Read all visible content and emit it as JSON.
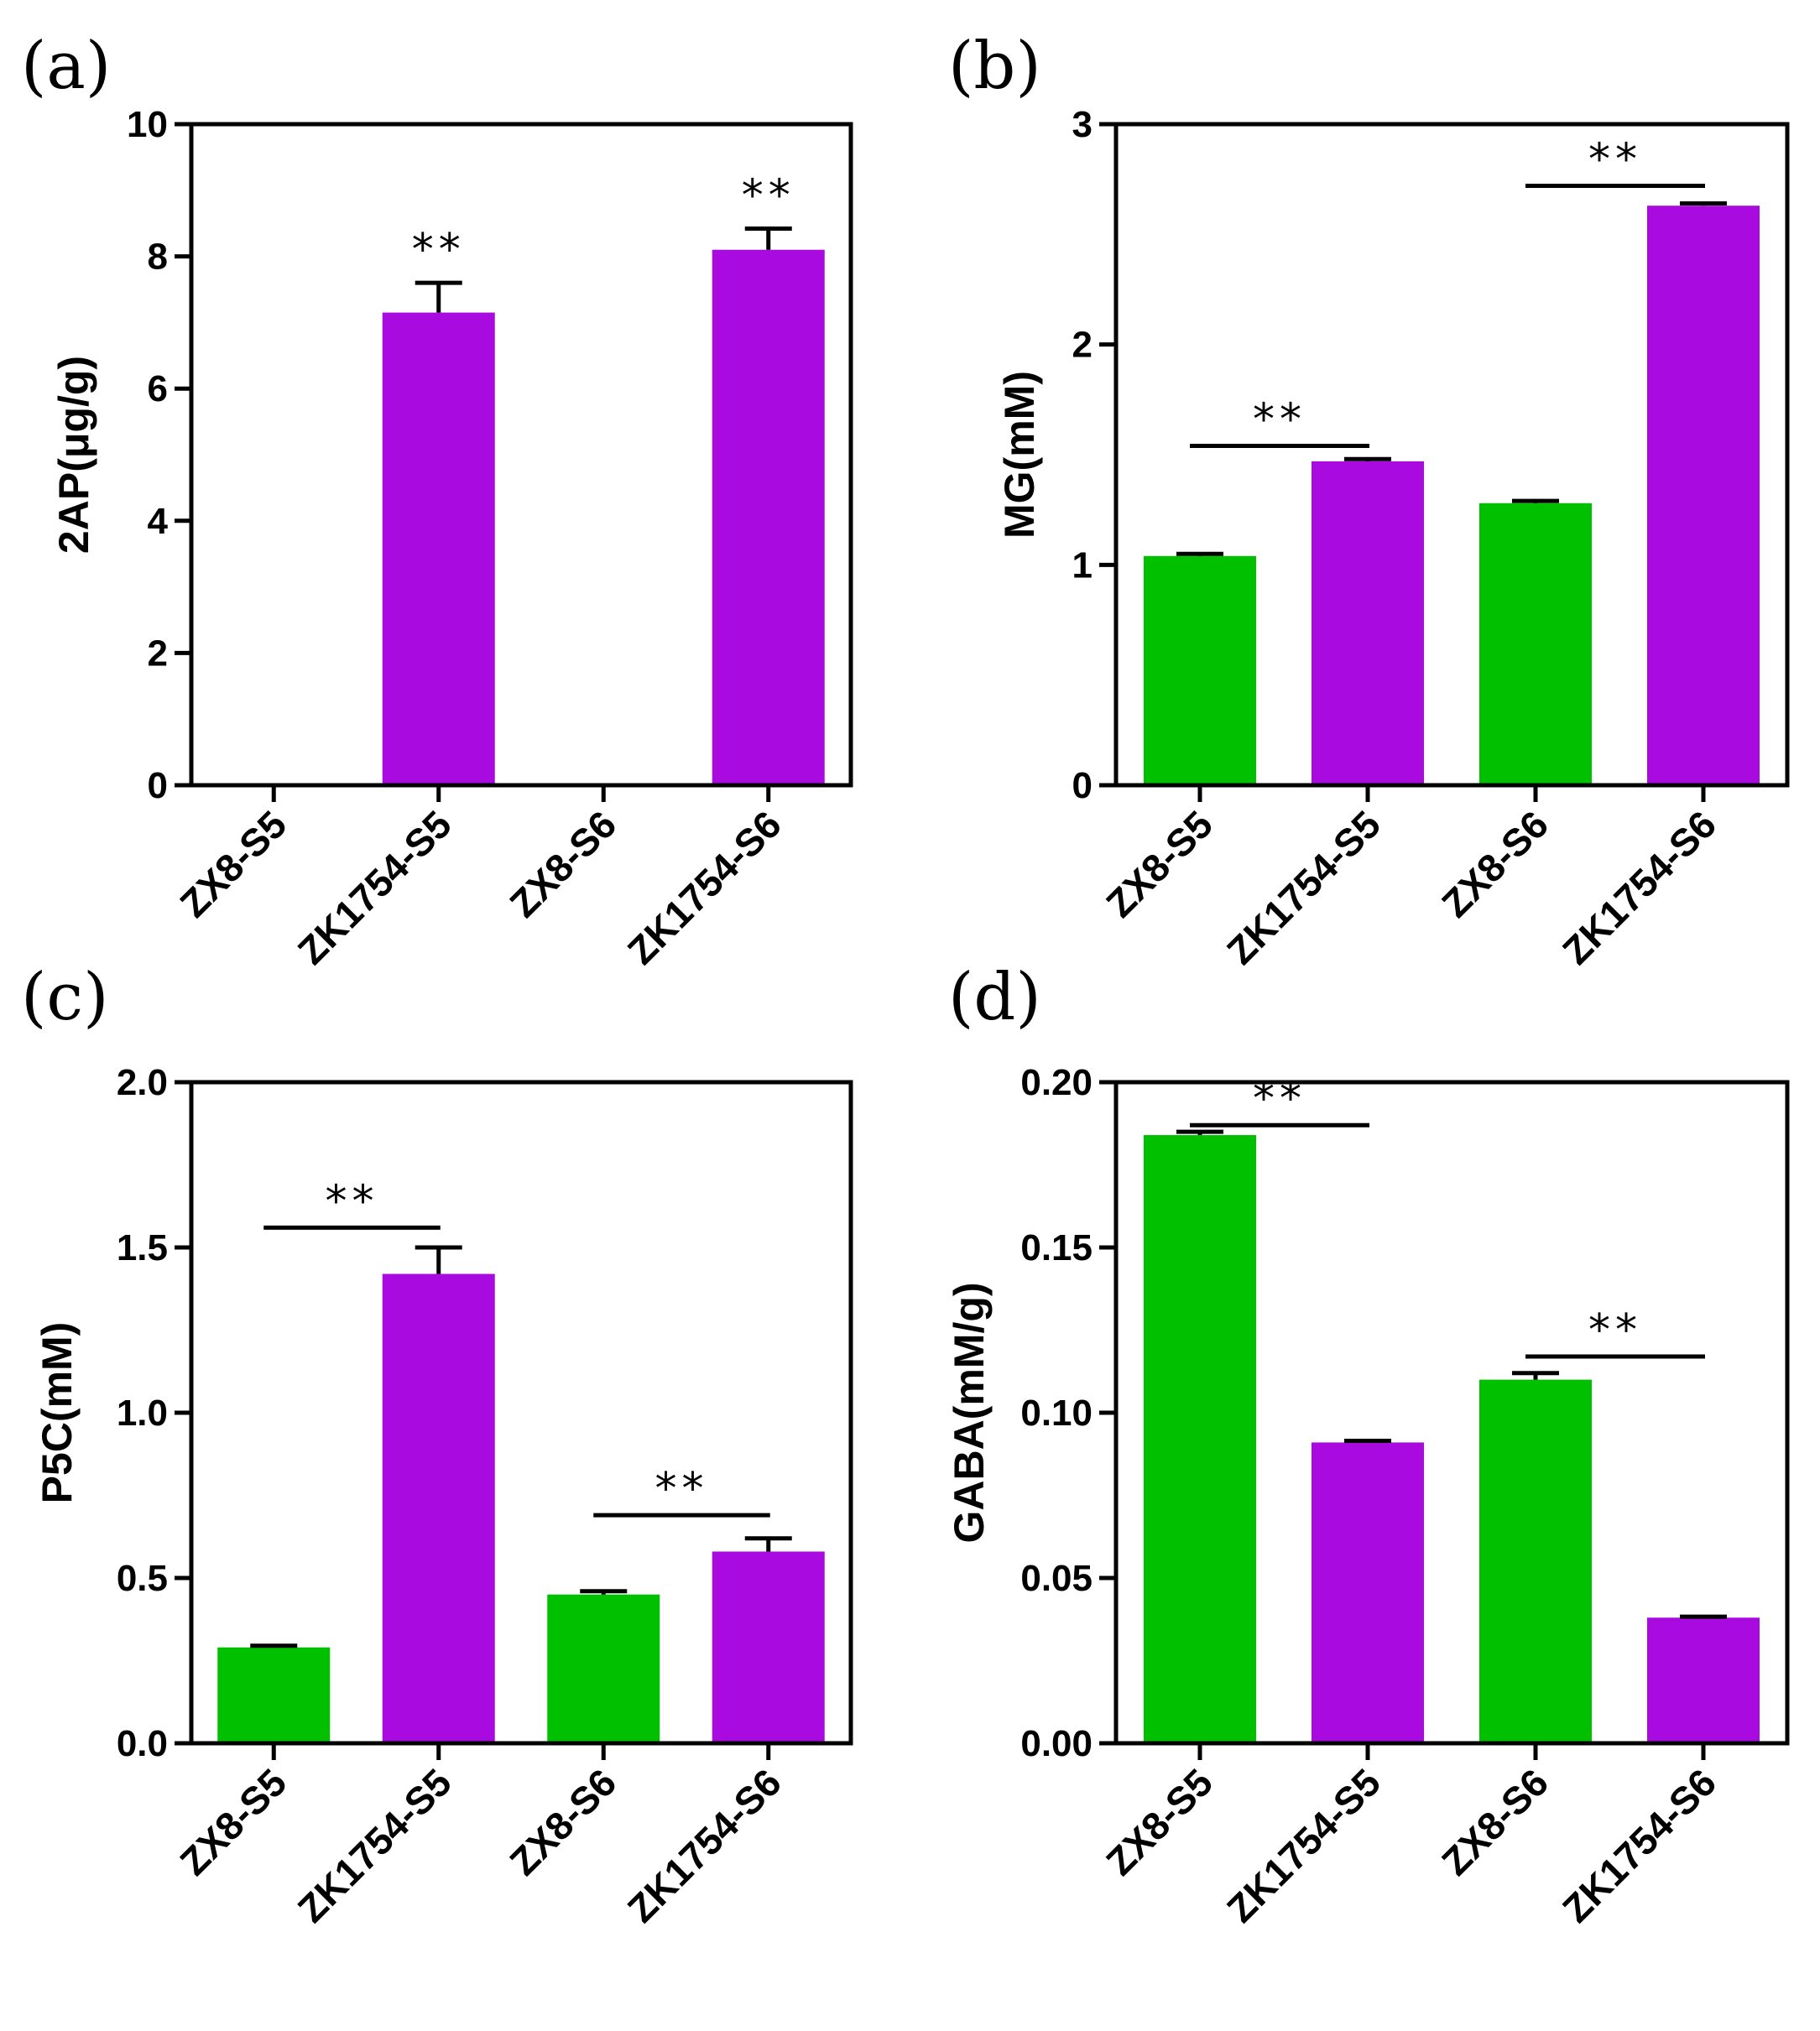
{
  "colors": {
    "green": "#00c000",
    "purple": "#a80ae0",
    "axis": "#000000"
  },
  "chart_data": [
    {
      "type": "bar",
      "panel": "(a)",
      "ylabel": "2AP(μg/g)",
      "ylim": [
        0,
        10
      ],
      "yticks": [
        "0",
        "2",
        "4",
        "6",
        "8",
        "10"
      ],
      "categories": [
        "ZX8-S5",
        "ZK1754-S5",
        "ZX8-S6",
        "ZK1754-S6"
      ],
      "values": [
        0,
        7.15,
        0,
        8.1
      ],
      "errors": [
        0,
        0.45,
        0,
        0.32
      ],
      "bar_colors": [
        "green",
        "purple",
        "green",
        "purple"
      ],
      "significance": [
        {
          "text": "**",
          "bar": 1
        },
        {
          "text": "**",
          "bar": 3
        }
      ]
    },
    {
      "type": "bar",
      "panel": "(b)",
      "ylabel": "MG(mM)",
      "ylim": [
        0,
        3
      ],
      "yticks": [
        "0",
        "1",
        "2",
        "3"
      ],
      "categories": [
        "ZX8-S5",
        "ZK1754-S5",
        "ZX8-S6",
        "ZK1754-S6"
      ],
      "values": [
        1.04,
        1.47,
        1.28,
        2.63
      ],
      "errors": [
        0.01,
        0.01,
        0.01,
        0.01
      ],
      "bar_colors": [
        "green",
        "purple",
        "green",
        "purple"
      ],
      "significance": [
        {
          "text": "**",
          "from": 0,
          "to": 1,
          "y": 1.54
        },
        {
          "text": "**",
          "from": 2,
          "to": 3,
          "y": 2.72
        }
      ]
    },
    {
      "type": "bar",
      "panel": "(c)",
      "ylabel": "P5C(mM)",
      "ylim": [
        0,
        2
      ],
      "yticks": [
        "0.0",
        "0.5",
        "1.0",
        "1.5",
        "2.0"
      ],
      "categories": [
        "ZX8-S5",
        "ZK1754-S5",
        "ZX8-S6",
        "ZK1754-S6"
      ],
      "values": [
        0.29,
        1.42,
        0.45,
        0.58
      ],
      "errors": [
        0.005,
        0.08,
        0.01,
        0.04
      ],
      "bar_colors": [
        "green",
        "purple",
        "green",
        "purple"
      ],
      "significance": [
        {
          "text": "**",
          "from": 0,
          "to": 1,
          "y": 1.56
        },
        {
          "text": "**",
          "from": 2,
          "to": 3,
          "y": 0.69
        }
      ]
    },
    {
      "type": "bar",
      "panel": "(d)",
      "ylabel": "GABA(mM/g)",
      "ylim": [
        0,
        0.2
      ],
      "yticks": [
        "0.00",
        "0.05",
        "0.10",
        "0.15",
        "0.20"
      ],
      "categories": [
        "ZX8-S5",
        "ZK1754-S5",
        "ZX8-S6",
        "ZK1754-S6"
      ],
      "values": [
        0.184,
        0.091,
        0.11,
        0.038
      ],
      "errors": [
        0.001,
        0.0005,
        0.002,
        0.0003
      ],
      "bar_colors": [
        "green",
        "purple",
        "green",
        "purple"
      ],
      "significance": [
        {
          "text": "**",
          "from": 0,
          "to": 1,
          "y": 0.187
        },
        {
          "text": "**",
          "from": 2,
          "to": 3,
          "y": 0.117
        }
      ]
    }
  ]
}
